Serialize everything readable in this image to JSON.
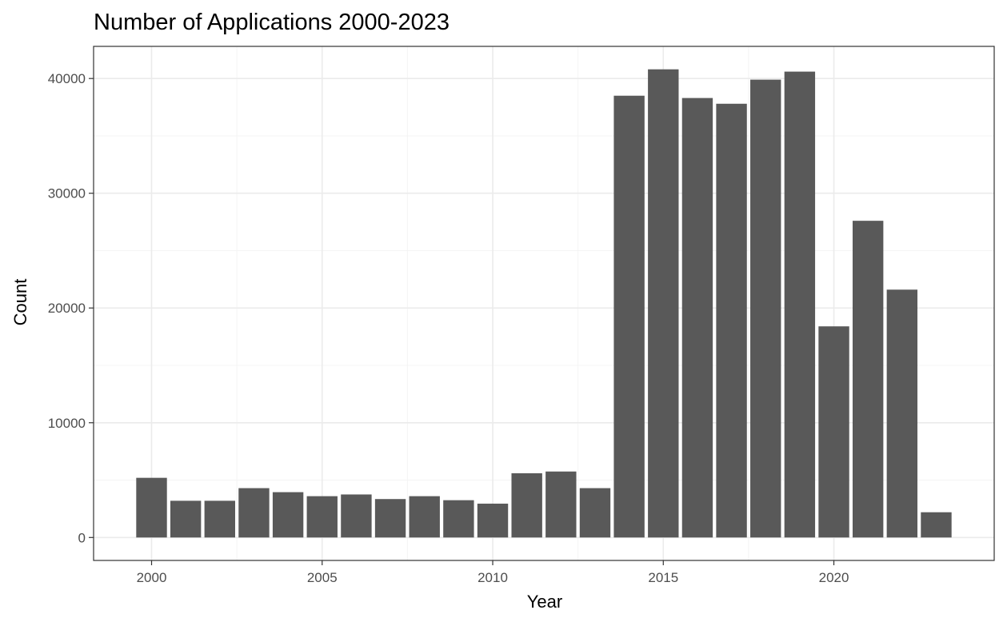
{
  "chart_data": {
    "type": "bar",
    "title": "Number of Applications 2000-2023",
    "xlabel": "Year",
    "ylabel": "Count",
    "x": [
      2000,
      2001,
      2002,
      2003,
      2004,
      2005,
      2006,
      2007,
      2008,
      2009,
      2010,
      2011,
      2012,
      2013,
      2014,
      2015,
      2016,
      2017,
      2018,
      2019,
      2020,
      2021,
      2022,
      2023
    ],
    "values": [
      5200,
      3200,
      3200,
      4300,
      3950,
      3600,
      3750,
      3350,
      3600,
      3250,
      2950,
      5600,
      5750,
      4300,
      38500,
      40800,
      38300,
      37800,
      39900,
      40600,
      18400,
      27600,
      21600,
      2200
    ],
    "xticks": [
      2000,
      2005,
      2010,
      2015,
      2020
    ],
    "yticks": [
      0,
      10000,
      20000,
      30000,
      40000
    ],
    "xlim": [
      1998.3,
      2024.7
    ],
    "ylim": [
      -2000,
      42800
    ],
    "grid": true,
    "bar_color": "#595959",
    "grid_color": "#ebebeb",
    "minor_grid_color": "#f4f4f4",
    "panel_border_color": "#333333"
  }
}
